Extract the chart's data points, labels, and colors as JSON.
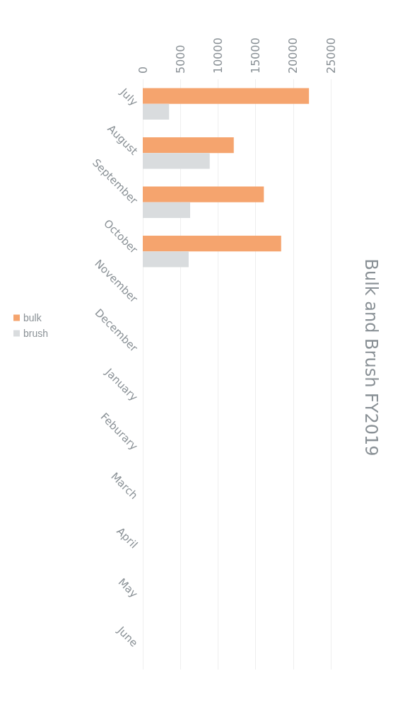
{
  "chart_data": {
    "type": "bar",
    "orientation": "horizontal",
    "title": "Bulk and Brush FY2019",
    "categories": [
      "July",
      "August",
      "September",
      "October",
      "November",
      "December",
      "January",
      "Feburary",
      "March",
      "April",
      "May",
      "June"
    ],
    "series": [
      {
        "name": "bulk",
        "color": "#f5a46e",
        "values": [
          22100,
          12100,
          16100,
          18400,
          null,
          null,
          null,
          null,
          null,
          null,
          null,
          null
        ]
      },
      {
        "name": "brush",
        "color": "#d9dcde",
        "values": [
          3500,
          8900,
          6300,
          6100,
          null,
          null,
          null,
          null,
          null,
          null,
          null,
          null
        ]
      }
    ],
    "xlim": [
      0,
      25000
    ],
    "xticks": [
      0,
      5000,
      10000,
      15000,
      20000,
      25000
    ],
    "grid": "x",
    "legend": "left"
  }
}
